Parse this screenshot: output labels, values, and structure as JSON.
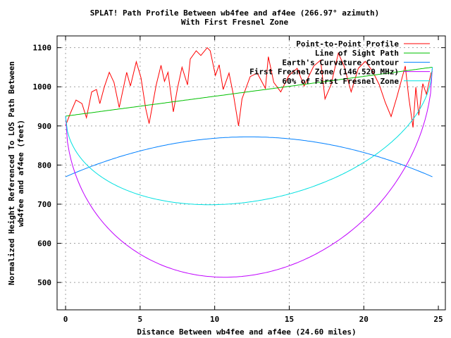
{
  "chart_data": {
    "type": "line",
    "title": "SPLAT! Path Profile Between wb4fee and af4ee (266.97° azimuth)",
    "subtitle": "With First Fresnel Zone",
    "xlabel": "Distance Between wb4fee and af4ee (24.60 miles)",
    "ylabel": [
      "Normalized Height Referenced To LOS Path Between",
      "wb4fee and af4ee (feet)"
    ],
    "xlim": [
      -0.57,
      25.47
    ],
    "ylim": [
      430,
      1130
    ],
    "xticks": [
      0,
      5,
      10,
      15,
      20,
      25
    ],
    "yticks": [
      500,
      600,
      700,
      800,
      900,
      1000,
      1100
    ],
    "grid": true,
    "legend_position": "top-right",
    "path_length_miles": 24.6,
    "series": [
      {
        "name": "Point-to-Point Profile",
        "color": "#ff0000",
        "x": [
          0,
          0.33,
          0.7,
          1.1,
          1.4,
          1.75,
          2.07,
          2.3,
          2.6,
          2.93,
          3.25,
          3.6,
          4.1,
          4.35,
          4.74,
          5.06,
          5.37,
          5.6,
          6.08,
          6.4,
          6.63,
          6.87,
          7.23,
          7.5,
          7.81,
          8.18,
          8.36,
          8.76,
          9.07,
          9.5,
          9.7,
          10.05,
          10.3,
          10.57,
          10.96,
          11.28,
          11.6,
          11.83,
          12.38,
          12.85,
          13.4,
          13.6,
          13.96,
          14.43,
          14.98,
          15.53,
          16.0,
          16.64,
          17.1,
          17.4,
          17.8,
          18.29,
          18.68,
          19.15,
          19.63,
          20.1,
          20.57,
          21.04,
          21.44,
          21.83,
          22.23,
          22.78,
          23.01,
          23.3,
          23.49,
          23.69,
          23.96,
          24.2,
          24.51,
          24.6
        ],
        "y": [
          901,
          933,
          966,
          957,
          921,
          987,
          993,
          957,
          1000,
          1037,
          1011,
          947,
          1037,
          1002,
          1064,
          1023,
          945,
          906,
          1005,
          1055,
          1014,
          1037,
          936,
          996,
          1050,
          1005,
          1071,
          1092,
          1080,
          1100,
          1092,
          1029,
          1056,
          993,
          1035,
          975,
          900,
          969,
          1026,
          1035,
          996,
          1077,
          1011,
          987,
          1029,
          1047,
          1002,
          1053,
          1068,
          969,
          1005,
          1086,
          1053,
          987,
          1047,
          1065,
          1041,
          1005,
          960,
          924,
          975,
          1053,
          975,
          896,
          999,
          927,
          1008,
          981,
          1035,
          1040
        ]
      },
      {
        "name": "Line of Sight Path",
        "color": "#00c000",
        "start": 925,
        "end": 1050
      },
      {
        "name": "Earth's Curvature Contour",
        "color": "#0080ff",
        "edge": 770,
        "peak": 872
      },
      {
        "name": "First Fresnel Zone (146.520 MHz)",
        "color": "#c000ff",
        "max_radius": 470
      },
      {
        "name": "60% of First Fresnel Zone",
        "color": "#00e0e0",
        "fraction": 0.6
      }
    ]
  }
}
